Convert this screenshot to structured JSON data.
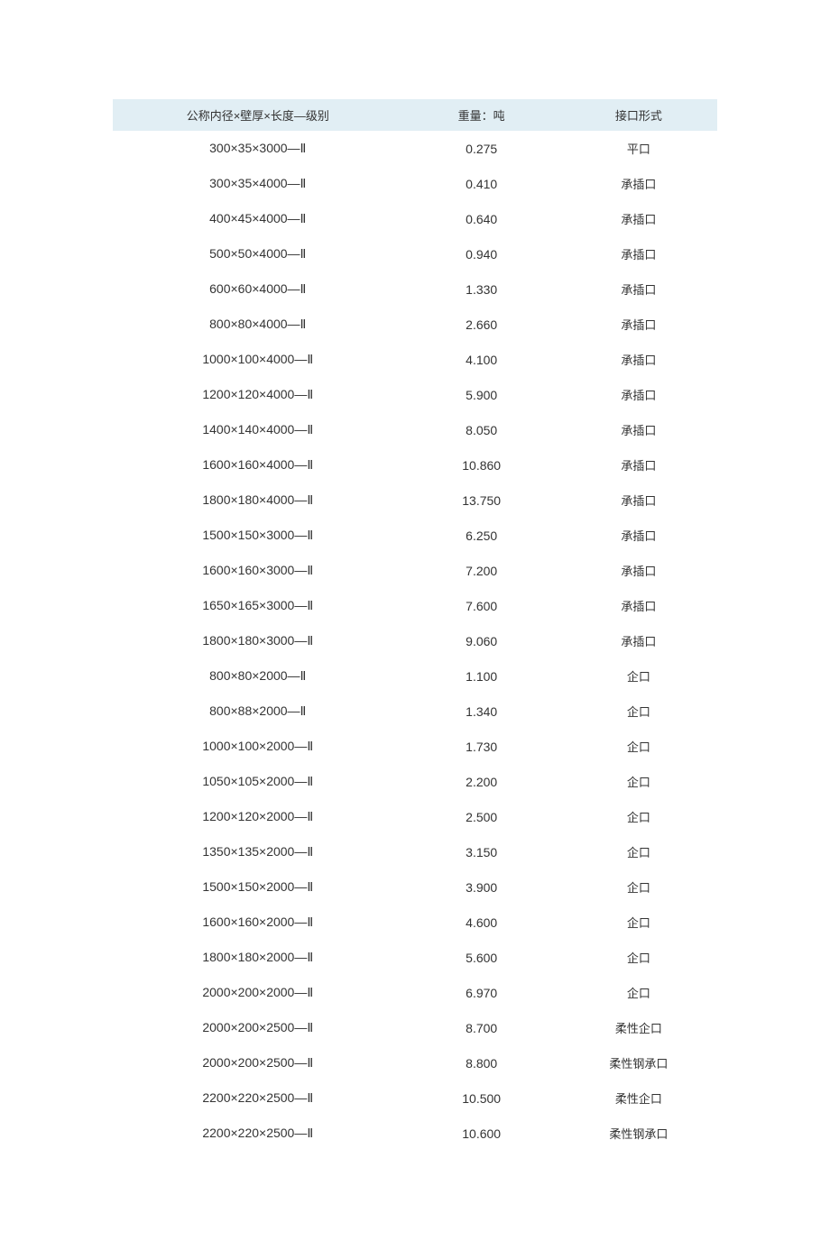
{
  "table": {
    "header_bg": "#e1eef4",
    "text_color": "#333333",
    "font_size_header": 13,
    "font_size_cell": 14,
    "columns": [
      {
        "key": "spec",
        "label": "公称内径×壁厚×长度—级别"
      },
      {
        "key": "weight",
        "label": "重量：吨"
      },
      {
        "key": "joint",
        "label": "接口形式"
      }
    ],
    "rows": [
      {
        "spec": "300×35×3000—Ⅱ",
        "weight": "0.275",
        "joint": "平口"
      },
      {
        "spec": "300×35×4000—Ⅱ",
        "weight": "0.410",
        "joint": "承插口"
      },
      {
        "spec": "400×45×4000—Ⅱ",
        "weight": "0.640",
        "joint": "承插口"
      },
      {
        "spec": "500×50×4000—Ⅱ",
        "weight": "0.940",
        "joint": "承插口"
      },
      {
        "spec": "600×60×4000—Ⅱ",
        "weight": "1.330",
        "joint": "承插口"
      },
      {
        "spec": "800×80×4000—Ⅱ",
        "weight": "2.660",
        "joint": "承插口"
      },
      {
        "spec": "1000×100×4000—Ⅱ",
        "weight": "4.100",
        "joint": "承插口"
      },
      {
        "spec": "1200×120×4000—Ⅱ",
        "weight": "5.900",
        "joint": "承插口"
      },
      {
        "spec": "1400×140×4000—Ⅱ",
        "weight": "8.050",
        "joint": "承插口"
      },
      {
        "spec": "1600×160×4000—Ⅱ",
        "weight": "10.860",
        "joint": "承插口"
      },
      {
        "spec": "1800×180×4000—Ⅱ",
        "weight": "13.750",
        "joint": "承插口"
      },
      {
        "spec": "1500×150×3000—Ⅱ",
        "weight": "6.250",
        "joint": "承插口"
      },
      {
        "spec": "1600×160×3000—Ⅱ",
        "weight": "7.200",
        "joint": "承插口"
      },
      {
        "spec": "1650×165×3000—Ⅱ",
        "weight": "7.600",
        "joint": "承插口"
      },
      {
        "spec": "1800×180×3000—Ⅱ",
        "weight": "9.060",
        "joint": "承插口"
      },
      {
        "spec": "800×80×2000—Ⅱ",
        "weight": "1.100",
        "joint": "企口"
      },
      {
        "spec": "800×88×2000—Ⅱ",
        "weight": "1.340",
        "joint": "企口"
      },
      {
        "spec": "1000×100×2000—Ⅱ",
        "weight": "1.730",
        "joint": "企口"
      },
      {
        "spec": "1050×105×2000—Ⅱ",
        "weight": "2.200",
        "joint": "企口"
      },
      {
        "spec": "1200×120×2000—Ⅱ",
        "weight": "2.500",
        "joint": "企口"
      },
      {
        "spec": "1350×135×2000—Ⅱ",
        "weight": "3.150",
        "joint": "企口"
      },
      {
        "spec": "1500×150×2000—Ⅱ",
        "weight": "3.900",
        "joint": "企口"
      },
      {
        "spec": "1600×160×2000—Ⅱ",
        "weight": "4.600",
        "joint": "企口"
      },
      {
        "spec": "1800×180×2000—Ⅱ",
        "weight": "5.600",
        "joint": "企口"
      },
      {
        "spec": "2000×200×2000—Ⅱ",
        "weight": "6.970",
        "joint": "企口"
      },
      {
        "spec": "2000×200×2500—Ⅱ",
        "weight": "8.700",
        "joint": "柔性企口"
      },
      {
        "spec": "2000×200×2500—Ⅱ",
        "weight": "8.800",
        "joint": "柔性钢承口"
      },
      {
        "spec": "2200×220×2500—Ⅱ",
        "weight": "10.500",
        "joint": "柔性企口"
      },
      {
        "spec": "2200×220×2500—Ⅱ",
        "weight": "10.600",
        "joint": "柔性钢承口"
      }
    ]
  }
}
